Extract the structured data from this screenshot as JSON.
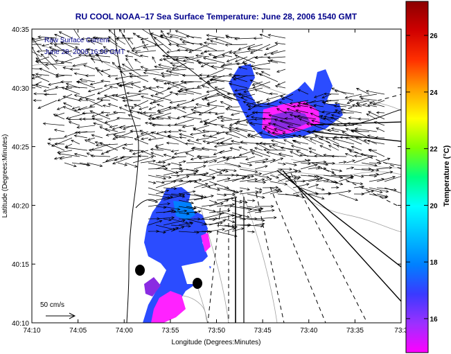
{
  "title": "RU COOL  NOAA–17  Sea Surface Temperature:  June 28, 2006 1540 GMT",
  "inset_label_1": "Raw Surface Current",
  "inset_label_2": "June 28, 2006 16:00 GMT",
  "scale_label": "50 cm/s",
  "x_axis": {
    "label": "Longitude (Degrees:Minutes)",
    "ticks": [
      "74:10",
      "74:05",
      "74:00",
      "73:55",
      "73:50",
      "73:45",
      "73:40",
      "73:35",
      "73:3"
    ]
  },
  "y_axis": {
    "label": "Latitude (Degrees:Minutes)",
    "ticks": [
      "40:35",
      "40:30",
      "40:25",
      "40:20",
      "40:15",
      "40:10"
    ]
  },
  "colorbar": {
    "label": "Temperature (°C)",
    "ticks": [
      "26",
      "24",
      "22",
      "20",
      "18",
      "16"
    ],
    "range": [
      14.8,
      27.2
    ],
    "colors": [
      "#ff00ff",
      "#9b30ff",
      "#3a3aff",
      "#0080ff",
      "#00c0ff",
      "#00ffff",
      "#00ff80",
      "#80ff00",
      "#ffff00",
      "#ffa000",
      "#ff3000",
      "#d00000",
      "#8b0000"
    ]
  },
  "colors": {
    "title": "#00008b",
    "sst_blue": "#2b4cff",
    "sst_purple": "#8a2be2",
    "sst_magenta": "#ff22ff",
    "contour": "#909090"
  }
}
